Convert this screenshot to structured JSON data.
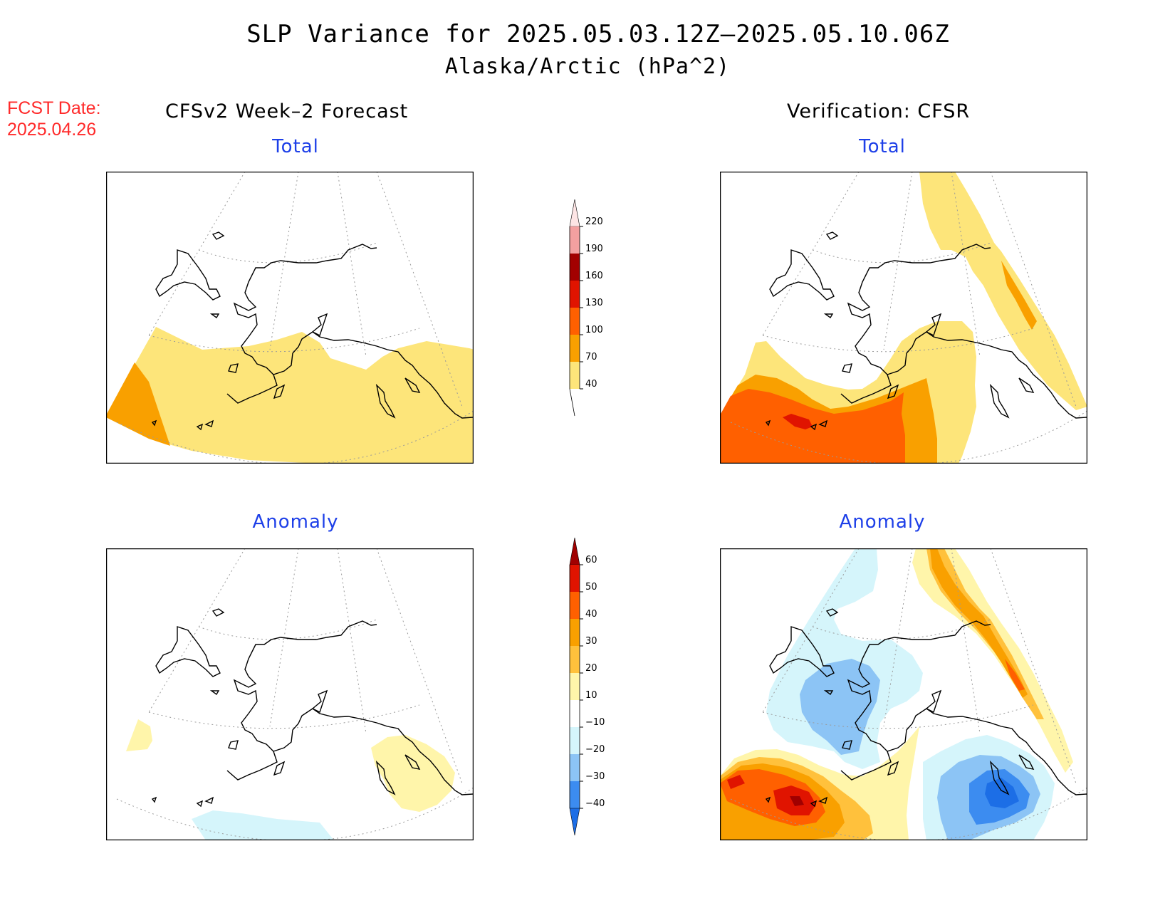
{
  "title": {
    "line1": "SLP Variance for 2025.05.03.12Z–2025.05.10.06Z",
    "line2": "Alaska/Arctic (hPa^2)"
  },
  "forecast_date": {
    "label": "FCST Date:",
    "value": "2025.04.26"
  },
  "columns": {
    "left": "CFSv2 Week–2 Forecast",
    "right": "Verification: CFSR"
  },
  "panels": {
    "top_left": "Total",
    "top_right": "Total",
    "bottom_left": "Anomaly",
    "bottom_right": "Anomaly"
  },
  "colorbars": {
    "total": {
      "levels": [
        "40",
        "70",
        "100",
        "130",
        "160",
        "190",
        "220"
      ],
      "colors": [
        "#fde57a",
        "#f9a000",
        "#ff6000",
        "#e01400",
        "#a20000",
        "#f3a0a0",
        "#fde5e5"
      ]
    },
    "anomaly": {
      "levels": [
        "−40",
        "−30",
        "−20",
        "−10",
        "10",
        "20",
        "30",
        "40",
        "50",
        "60"
      ],
      "colors": [
        "#1c6ee6",
        "#3c8cf0",
        "#8cc4f5",
        "#d5f5fb",
        "#ffffff",
        "#fff5aa",
        "#ffc13c",
        "#f9a000",
        "#ff6000",
        "#e01400",
        "#a00000"
      ]
    }
  }
}
